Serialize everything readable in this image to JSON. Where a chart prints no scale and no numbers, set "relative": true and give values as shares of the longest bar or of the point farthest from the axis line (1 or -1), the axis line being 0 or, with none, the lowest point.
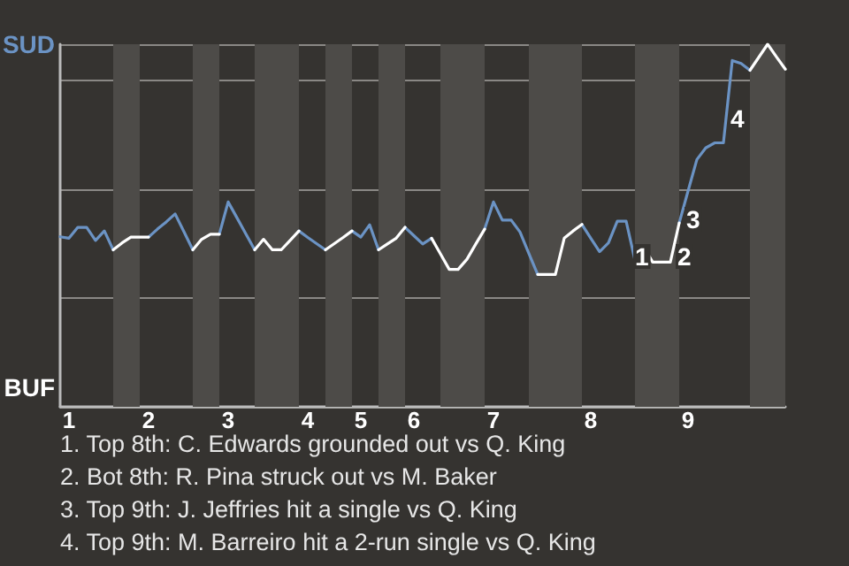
{
  "chart_data": {
    "type": "line",
    "relative": true,
    "categories": [
      null,
      "1",
      null,
      null,
      null,
      null,
      null,
      null,
      null,
      null,
      "2",
      null,
      null,
      null,
      null,
      null,
      null,
      null,
      null,
      "3",
      null,
      null,
      null,
      null,
      null,
      null,
      null,
      null,
      "4",
      null,
      null,
      null,
      null,
      null,
      "5",
      null,
      null,
      null,
      null,
      null,
      "6",
      null,
      null,
      null,
      null,
      null,
      null,
      null,
      null,
      "7",
      null,
      null,
      null,
      null,
      null,
      null,
      null,
      null,
      null,
      null,
      "8",
      null,
      null,
      null,
      null,
      null,
      null,
      null,
      null,
      null,
      null,
      "9",
      null,
      null,
      null,
      null,
      null,
      null,
      null,
      null,
      null,
      null,
      null
    ],
    "series": [
      {
        "color": "#6b93c4",
        "values": [
          0.469,
          0.465,
          0.495,
          0.495,
          0.459,
          0.485,
          0.433,
          null,
          null,
          null,
          0.468,
          0.49,
          0.51,
          0.532,
          0.483,
          0.433,
          null,
          null,
          0.476,
          0.565,
          0.521,
          0.477,
          0.433,
          null,
          null,
          null,
          null,
          0.485,
          0.467,
          0.45,
          0.433,
          null,
          null,
          0.485,
          0.468,
          0.502,
          0.433,
          null,
          null,
          0.495,
          0.472,
          0.449,
          0.465,
          null,
          null,
          null,
          null,
          null,
          0.49,
          0.565,
          0.515,
          0.515,
          0.482,
          0.423,
          0.365,
          null,
          null,
          null,
          null,
          0.503,
          0.465,
          0.428,
          0.452,
          0.512,
          0.512,
          0.404,
          null,
          null,
          null,
          null,
          0.507,
          0.595,
          0.682,
          0.714,
          0.728,
          0.728,
          0.955,
          0.947,
          0.928,
          null,
          null,
          null,
          null
        ],
        "line_style": "solid"
      },
      {
        "color": "#ffffff",
        "values": [
          null,
          null,
          null,
          null,
          null,
          null,
          0.433,
          0.452,
          0.468,
          0.468,
          0.468,
          null,
          null,
          null,
          null,
          0.433,
          0.462,
          0.476,
          0.476,
          null,
          null,
          null,
          0.433,
          0.462,
          0.433,
          0.433,
          0.459,
          0.485,
          null,
          null,
          0.433,
          0.45,
          0.467,
          0.485,
          null,
          null,
          0.433,
          0.449,
          0.465,
          0.495,
          null,
          null,
          0.465,
          0.422,
          0.379,
          0.379,
          0.407,
          0.449,
          0.49,
          null,
          null,
          null,
          null,
          null,
          0.365,
          0.365,
          0.365,
          0.465,
          0.485,
          0.503,
          null,
          null,
          null,
          null,
          null,
          0.404,
          0.44,
          0.399,
          0.399,
          0.399,
          0.507,
          null,
          null,
          null,
          null,
          null,
          null,
          null,
          0.928,
          0.964,
          1,
          0.965,
          0.931
        ],
        "line_style": "solid"
      }
    ],
    "grid": "y",
    "annotations": [
      "SUD",
      "BUF",
      "1",
      "2",
      "3",
      "4",
      "1. Top 8th: C. Edwards grounded out vs Q. King",
      "2. Bot 8th: R. Pina struck out vs M. Baker",
      "3. Top 9th: J. Jeffries hit a single vs Q. King",
      "4. Top 9th: M. Barreiro hit a 2-run single vs Q. King"
    ]
  }
}
